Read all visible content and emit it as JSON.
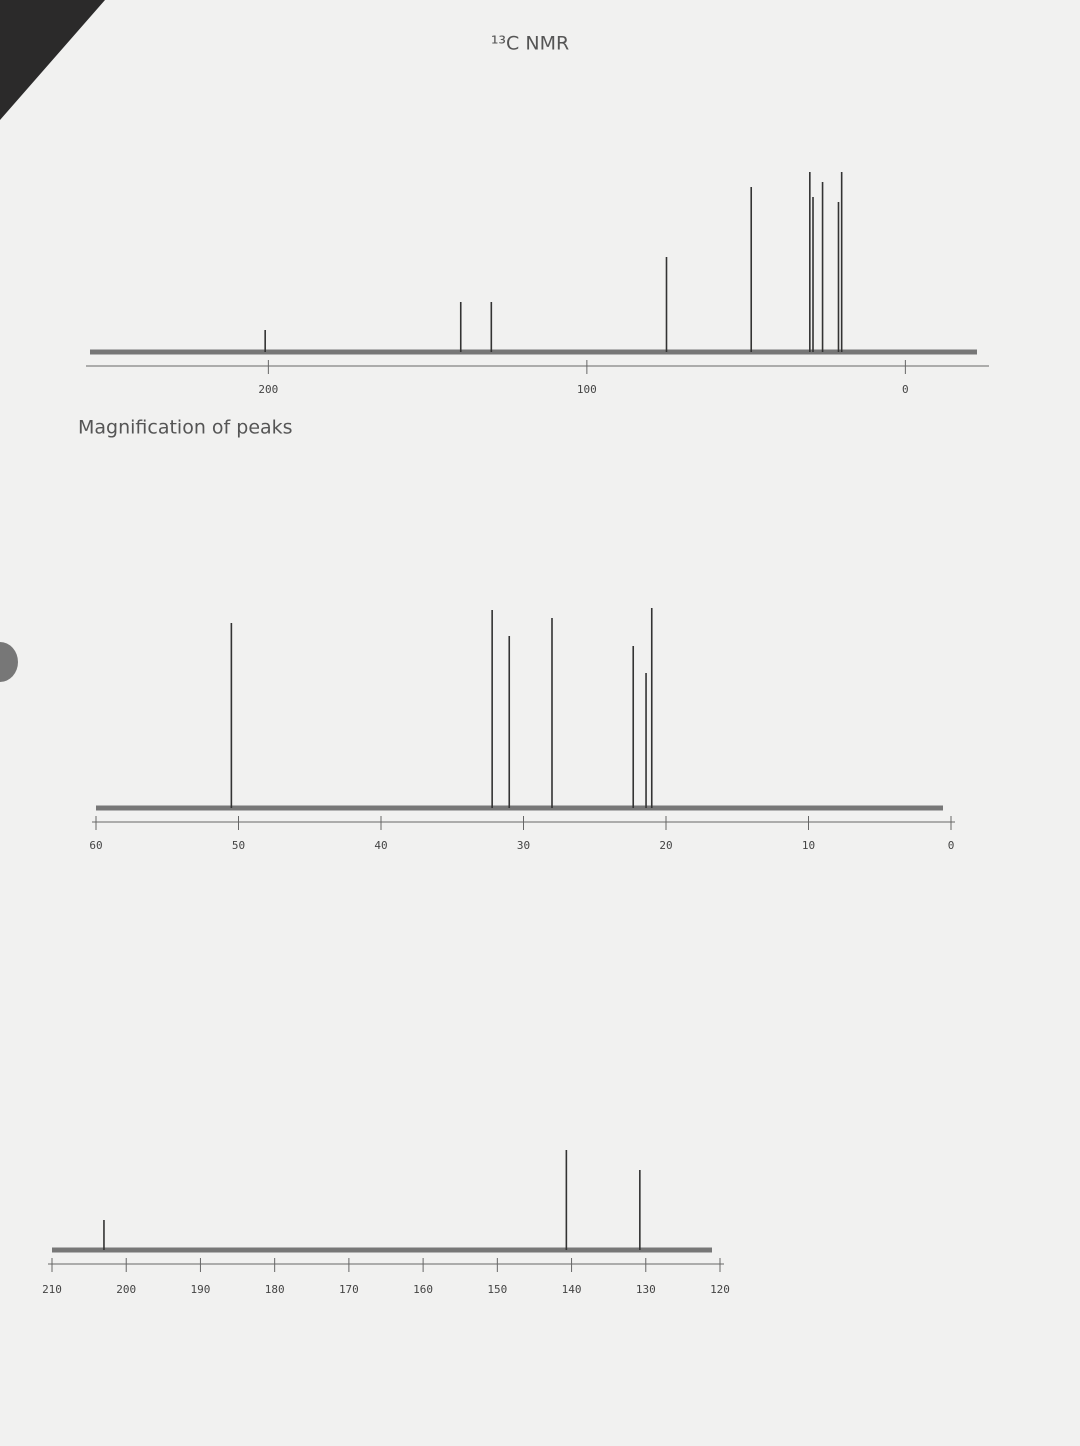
{
  "chart_data": [
    {
      "type": "stem",
      "title": "¹³C NMR",
      "x": [
        201,
        139.6,
        130,
        75,
        48.4,
        30,
        29,
        26,
        21,
        20
      ],
      "values": [
        22,
        50,
        50,
        95,
        165,
        180,
        155,
        170,
        150,
        180
      ],
      "xlim": [
        256,
        -25
      ],
      "xticks": [
        200,
        100,
        0
      ],
      "color": "#333333"
    },
    {
      "type": "stem",
      "title": "Magnification of peaks",
      "x": [
        50.5,
        32.2,
        31,
        28,
        22.3,
        21.4,
        21
      ],
      "values": [
        185,
        198,
        172,
        190,
        162,
        135,
        200
      ],
      "xlim": [
        60,
        0
      ],
      "xticks": [
        60,
        50,
        40,
        30,
        20,
        10,
        0
      ],
      "color": "#333333"
    },
    {
      "type": "stem",
      "x": [
        203,
        140.7,
        130.8
      ],
      "values": [
        30,
        100,
        80
      ],
      "xlim": [
        210,
        120
      ],
      "xticks": [
        210,
        200,
        190,
        180,
        170,
        160,
        150,
        140,
        130,
        120
      ],
      "color": "#333333"
    }
  ]
}
